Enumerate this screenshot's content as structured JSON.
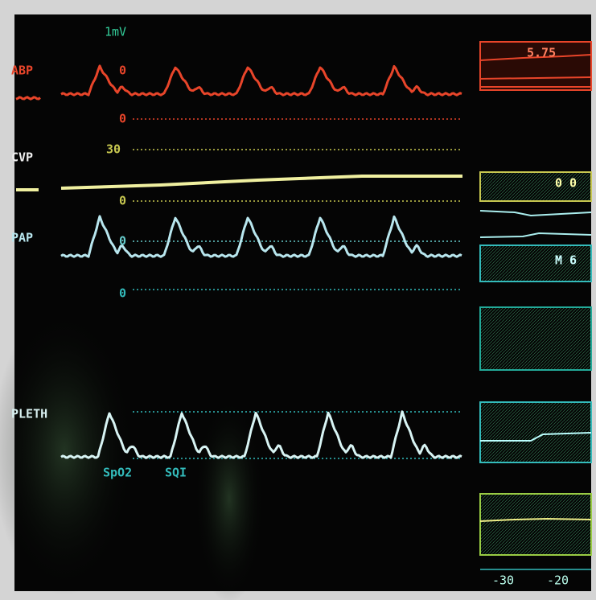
{
  "header": {
    "scale": "1mV"
  },
  "channels": [
    {
      "label": "ABP",
      "scales": [
        "0",
        "0"
      ]
    },
    {
      "label": "CVP",
      "scales": [
        "30",
        "0"
      ]
    },
    {
      "label": "PAP",
      "scales": [
        "0",
        "0"
      ]
    },
    {
      "label": "PLETH",
      "sublabels": [
        "SpO2",
        "SQI"
      ]
    }
  ],
  "trends": {
    "values": [
      "5.75",
      "0 0",
      "M 6"
    ],
    "axis": [
      "-30",
      "-20"
    ]
  }
}
